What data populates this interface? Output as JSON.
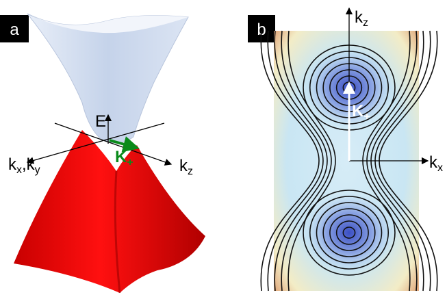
{
  "panels": [
    {
      "label": "a",
      "axis_labels": [
        {
          "parts": [
            {
              "text": "E"
            }
          ]
        },
        {
          "parts": [
            {
              "text": "k"
            },
            {
              "sub": "x"
            },
            {
              "text": ",k"
            },
            {
              "sub": "y"
            }
          ]
        },
        {
          "parts": [
            {
              "text": "k"
            },
            {
              "sub": "z"
            }
          ]
        },
        {
          "parts": [
            {
              "text": "K"
            },
            {
              "sub": "+"
            }
          ]
        }
      ]
    },
    {
      "label": "b",
      "axis_labels": [
        {
          "parts": [
            {
              "text": "k"
            },
            {
              "sub": "z"
            }
          ]
        },
        {
          "parts": [
            {
              "text": "k"
            },
            {
              "sub": "x"
            }
          ]
        },
        {
          "parts": [
            {
              "text": "K"
            },
            {
              "sub": "+"
            }
          ]
        }
      ]
    }
  ]
}
